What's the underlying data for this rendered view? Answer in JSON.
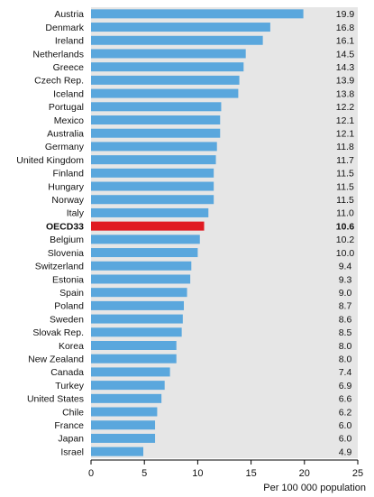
{
  "chart_data": {
    "type": "bar",
    "orientation": "horizontal",
    "categories": [
      "Austria",
      "Denmark",
      "Ireland",
      "Netherlands",
      "Greece",
      "Czech Rep.",
      "Iceland",
      "Portugal",
      "Mexico",
      "Australia",
      "Germany",
      "United Kingdom",
      "Finland",
      "Hungary",
      "Norway",
      "Italy",
      "OECD33",
      "Belgium",
      "Slovenia",
      "Switzerland",
      "Estonia",
      "Spain",
      "Poland",
      "Sweden",
      "Slovak Rep.",
      "Korea",
      "New Zealand",
      "Canada",
      "Turkey",
      "United States",
      "Chile",
      "France",
      "Japan",
      "Israel"
    ],
    "values": [
      19.9,
      16.8,
      16.1,
      14.5,
      14.3,
      13.9,
      13.8,
      12.2,
      12.1,
      12.1,
      11.8,
      11.7,
      11.5,
      11.5,
      11.5,
      11.0,
      10.6,
      10.2,
      10.0,
      9.4,
      9.3,
      9.0,
      8.7,
      8.6,
      8.5,
      8.0,
      8.0,
      7.4,
      6.9,
      6.6,
      6.2,
      6.0,
      6.0,
      4.9
    ],
    "value_labels": [
      "19.9",
      "16.8",
      "16.1",
      "14.5",
      "14.3",
      "13.9",
      "13.8",
      "12.2",
      "12.1",
      "12.1",
      "11.8",
      "11.7",
      "11.5",
      "11.5",
      "11.5",
      "11.0",
      "10.6",
      "10.2",
      "10.0",
      "9.4",
      "9.3",
      "9.0",
      "8.7",
      "8.6",
      "8.5",
      "8.0",
      "8.0",
      "7.4",
      "6.9",
      "6.6",
      "6.2",
      "6.0",
      "6.0",
      "4.9"
    ],
    "highlight": "OECD33",
    "xlabel": "Per 100 000 population",
    "xlim": [
      0,
      25
    ],
    "xticks": [
      "0",
      "5",
      "10",
      "15",
      "20",
      "25"
    ],
    "colors": {
      "bar": "#5aa7dd",
      "highlight_bar": "#e01b22",
      "band": "#e6e6e6",
      "text": "#111111"
    }
  }
}
